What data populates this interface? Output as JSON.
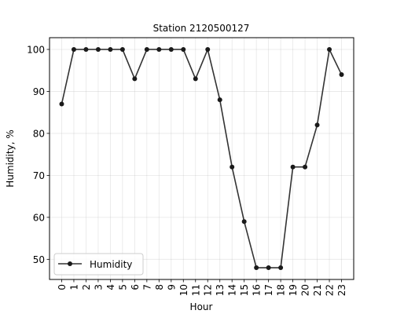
{
  "chart_data": {
    "type": "line",
    "title": "Station 2120500127",
    "xlabel": "Hour",
    "ylabel": "Humidity, %",
    "x": [
      0,
      1,
      2,
      3,
      4,
      5,
      6,
      7,
      8,
      9,
      10,
      11,
      12,
      13,
      14,
      15,
      16,
      17,
      18,
      19,
      20,
      21,
      22,
      23
    ],
    "series": [
      {
        "name": "Humidity",
        "values": [
          87,
          100,
          100,
          100,
          100,
          100,
          93,
          100,
          100,
          100,
          100,
          93,
          100,
          88,
          72,
          59,
          48,
          48,
          48,
          72,
          72,
          82,
          100,
          94
        ],
        "color": "#333333"
      }
    ],
    "xlim": [
      -1,
      24
    ],
    "ylim": [
      45.2,
      102.8
    ],
    "yticks": [
      50,
      60,
      70,
      80,
      90,
      100
    ],
    "xticks": [
      "0",
      "1",
      "2",
      "3",
      "4",
      "5",
      "6",
      "7",
      "8",
      "9",
      "10",
      "11",
      "12",
      "13",
      "14",
      "15",
      "16",
      "17",
      "18",
      "19",
      "20",
      "21",
      "22",
      "23"
    ],
    "grid": true,
    "legend_position": "lower-left"
  }
}
